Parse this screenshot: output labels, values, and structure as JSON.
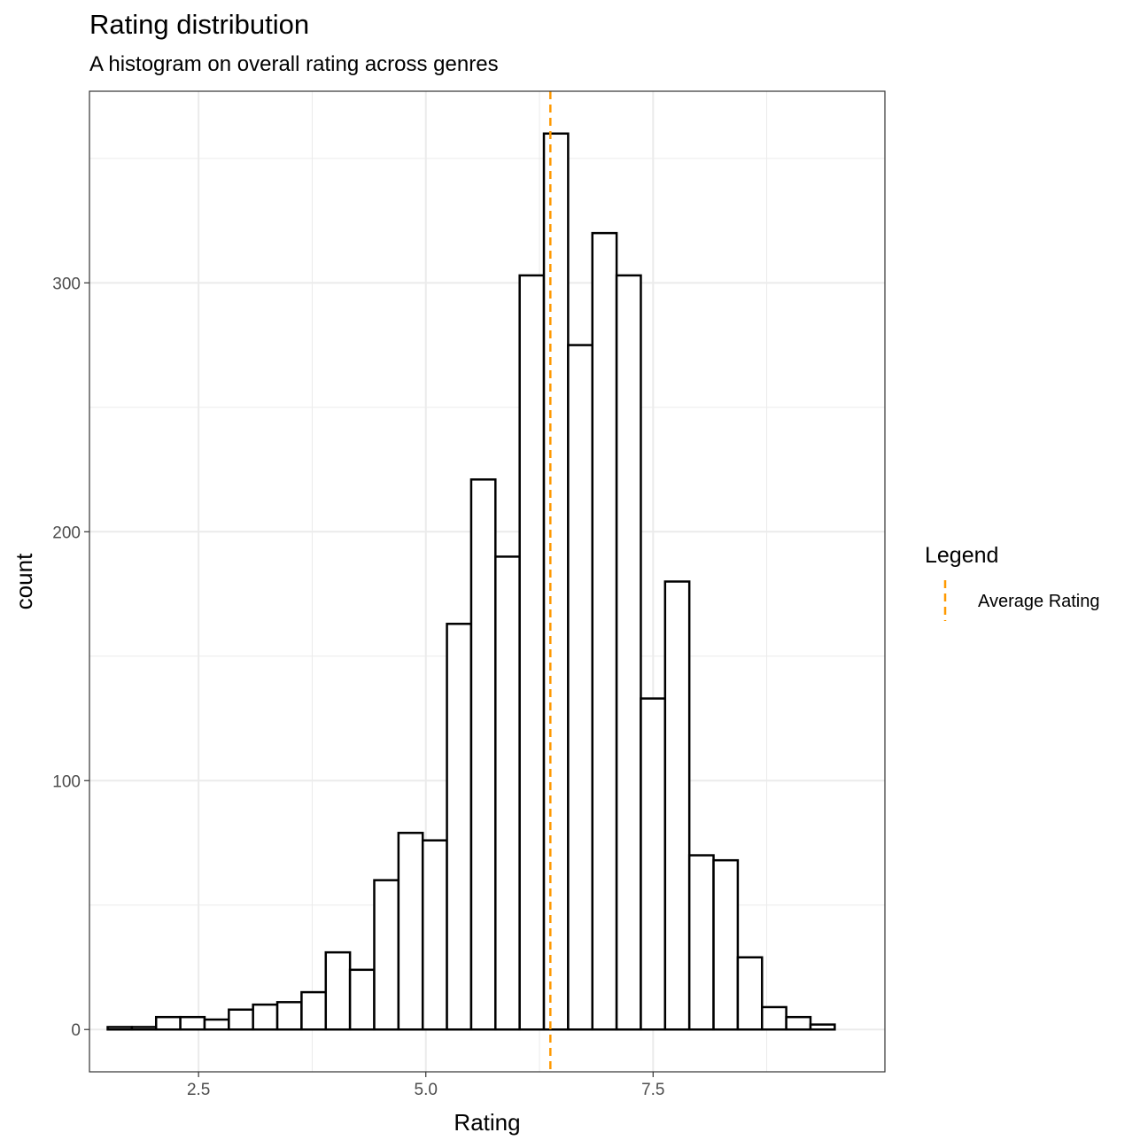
{
  "chart_data": {
    "type": "histogram",
    "title": "Rating distribution",
    "subtitle": "A histogram on overall rating across genres",
    "xlabel": "Rating",
    "ylabel": "count",
    "xlim": [
      1.3,
      10.05
    ],
    "ylim": [
      -17,
      377
    ],
    "x_ticks": [
      2.5,
      5.0,
      7.5
    ],
    "x_tick_labels": [
      "2.5",
      "5.0",
      "7.5"
    ],
    "y_ticks": [
      0,
      100,
      200,
      300
    ],
    "y_tick_labels": [
      "0",
      "100",
      "200",
      "300"
    ],
    "bin_width": 0.2666,
    "bin_start": 1.5,
    "counts": [
      1,
      1,
      5,
      5,
      4,
      8,
      10,
      11,
      15,
      31,
      24,
      60,
      79,
      76,
      163,
      221,
      190,
      303,
      360,
      275,
      320,
      303,
      133,
      180,
      70,
      68,
      29,
      9,
      5,
      2
    ],
    "average_rating": 6.37,
    "grid": true,
    "bar_fill": "#ffffff",
    "bar_stroke": "#000000",
    "average_line_color": "#FF9900",
    "legend": {
      "title": "Legend",
      "position": "right",
      "items": [
        {
          "label": "Average Rating",
          "color": "#FF9900",
          "style": "dashed"
        }
      ]
    }
  }
}
